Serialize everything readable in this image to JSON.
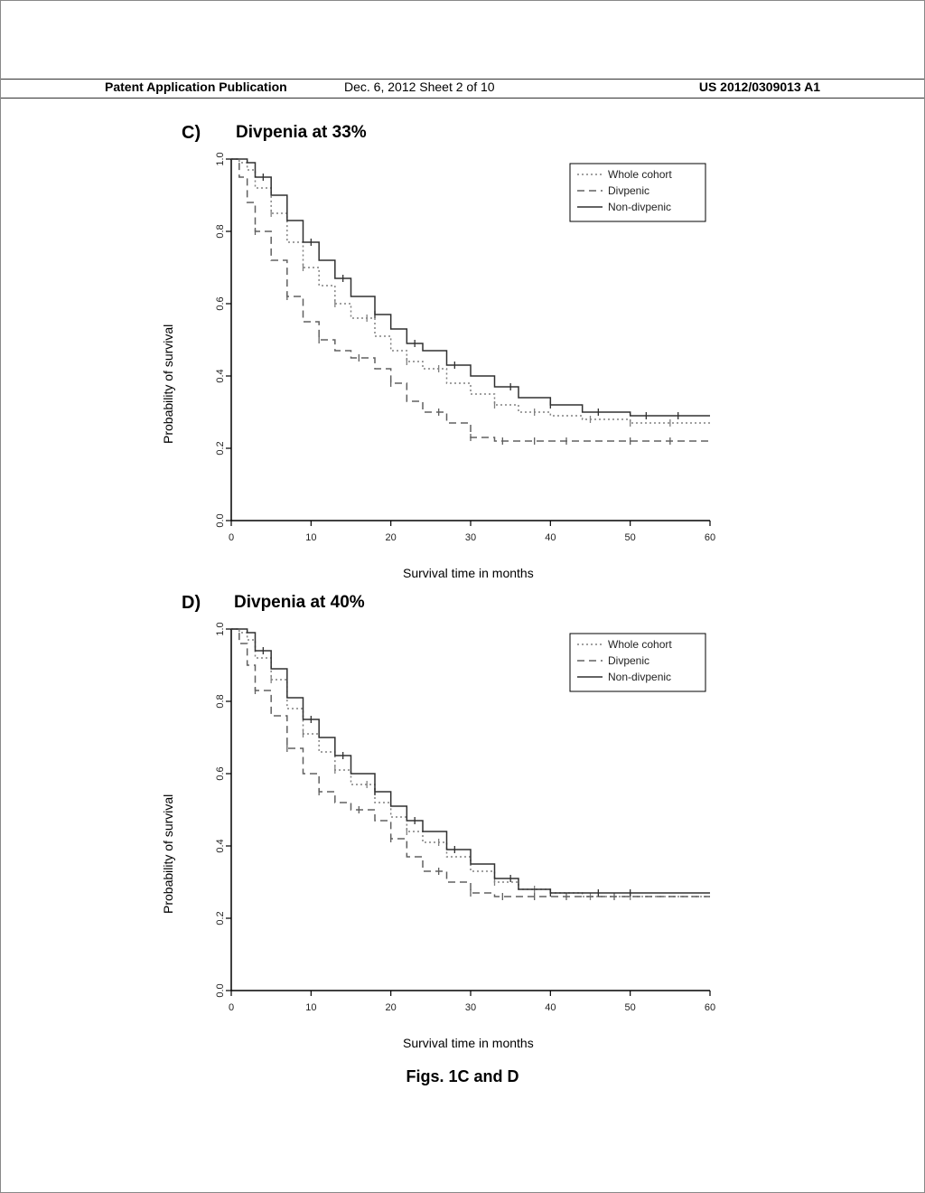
{
  "header": {
    "left": "Patent Application Publication",
    "middle": "Dec. 6, 2012  Sheet 2 of 10",
    "right": "US 2012/0309013 A1"
  },
  "caption": "Figs. 1C and D",
  "panel_c": {
    "label": "C)",
    "title": "Divpenia at 33%",
    "chart": {
      "type": "line",
      "xlabel": "Survival time in months",
      "ylabel": "Probability of survival",
      "xlim": [
        0,
        60
      ],
      "ylim": [
        0.0,
        1.0
      ],
      "xticks": [
        0,
        10,
        20,
        30,
        40,
        50,
        60
      ],
      "yticks": [
        0.0,
        0.2,
        0.4,
        0.6,
        0.8,
        1.0
      ],
      "ytick_labels": [
        "0.0",
        "0.2",
        "0.4",
        "0.6",
        "0.8",
        "1.0"
      ],
      "background_color": "#ffffff",
      "axis_color": "#000000",
      "grid_color": "#cccccc",
      "label_fontsize": 13,
      "tick_fontsize": 11,
      "line_width": 1.5,
      "censor_tick_height": 4,
      "legend": {
        "position": "top-right",
        "border_color": "#000000",
        "bg_color": "#ffffff",
        "fontsize": 12,
        "items": [
          "Whole cohort",
          "Divpenic",
          "Non-divpenic"
        ]
      },
      "series": [
        {
          "name": "Whole cohort",
          "color": "#808080",
          "dash": "dotted",
          "points": [
            [
              0,
              1.0
            ],
            [
              1,
              0.99
            ],
            [
              2,
              0.97
            ],
            [
              3,
              0.92
            ],
            [
              5,
              0.85
            ],
            [
              7,
              0.77
            ],
            [
              9,
              0.7
            ],
            [
              11,
              0.65
            ],
            [
              13,
              0.6
            ],
            [
              15,
              0.56
            ],
            [
              18,
              0.51
            ],
            [
              20,
              0.47
            ],
            [
              22,
              0.44
            ],
            [
              24,
              0.42
            ],
            [
              27,
              0.38
            ],
            [
              30,
              0.35
            ],
            [
              33,
              0.32
            ],
            [
              36,
              0.3
            ],
            [
              40,
              0.29
            ],
            [
              44,
              0.28
            ],
            [
              50,
              0.27
            ],
            [
              55,
              0.27
            ],
            [
              60,
              0.27
            ]
          ],
          "censor_x": [
            5,
            9,
            13,
            17,
            22,
            26,
            33,
            38,
            45,
            50,
            55
          ]
        },
        {
          "name": "Divpenic",
          "color": "#606060",
          "dash": "dashed",
          "points": [
            [
              0,
              1.0
            ],
            [
              1,
              0.95
            ],
            [
              2,
              0.88
            ],
            [
              3,
              0.8
            ],
            [
              5,
              0.72
            ],
            [
              7,
              0.62
            ],
            [
              9,
              0.55
            ],
            [
              11,
              0.5
            ],
            [
              13,
              0.47
            ],
            [
              15,
              0.45
            ],
            [
              18,
              0.42
            ],
            [
              20,
              0.38
            ],
            [
              22,
              0.33
            ],
            [
              24,
              0.3
            ],
            [
              27,
              0.27
            ],
            [
              30,
              0.23
            ],
            [
              33,
              0.22
            ],
            [
              36,
              0.22
            ],
            [
              40,
              0.22
            ],
            [
              44,
              0.22
            ],
            [
              50,
              0.22
            ],
            [
              55,
              0.22
            ],
            [
              60,
              0.22
            ]
          ],
          "censor_x": [
            3,
            7,
            11,
            16,
            20,
            26,
            30,
            34,
            38,
            42,
            50,
            55
          ]
        },
        {
          "name": "Non-divpenic",
          "color": "#303030",
          "dash": "solid",
          "points": [
            [
              0,
              1.0
            ],
            [
              1,
              1.0
            ],
            [
              2,
              0.99
            ],
            [
              3,
              0.95
            ],
            [
              5,
              0.9
            ],
            [
              7,
              0.83
            ],
            [
              9,
              0.77
            ],
            [
              11,
              0.72
            ],
            [
              13,
              0.67
            ],
            [
              15,
              0.62
            ],
            [
              18,
              0.57
            ],
            [
              20,
              0.53
            ],
            [
              22,
              0.49
            ],
            [
              24,
              0.47
            ],
            [
              27,
              0.43
            ],
            [
              30,
              0.4
            ],
            [
              33,
              0.37
            ],
            [
              36,
              0.34
            ],
            [
              40,
              0.32
            ],
            [
              44,
              0.3
            ],
            [
              50,
              0.29
            ],
            [
              55,
              0.29
            ],
            [
              60,
              0.29
            ]
          ],
          "censor_x": [
            4,
            10,
            14,
            18,
            23,
            28,
            35,
            40,
            46,
            52,
            56
          ]
        }
      ]
    }
  },
  "panel_d": {
    "label": "D)",
    "title": "Divpenia at 40%",
    "chart": {
      "type": "line",
      "xlabel": "Survival time in months",
      "ylabel": "Probability of survival",
      "xlim": [
        0,
        60
      ],
      "ylim": [
        0.0,
        1.0
      ],
      "xticks": [
        0,
        10,
        20,
        30,
        40,
        50,
        60
      ],
      "yticks": [
        0.0,
        0.2,
        0.4,
        0.6,
        0.8,
        1.0
      ],
      "ytick_labels": [
        "0.0",
        "0.2",
        "0.4",
        "0.6",
        "0.8",
        "1.0"
      ],
      "background_color": "#ffffff",
      "axis_color": "#000000",
      "grid_color": "#cccccc",
      "label_fontsize": 13,
      "tick_fontsize": 11,
      "line_width": 1.5,
      "censor_tick_height": 4,
      "legend": {
        "position": "top-right",
        "border_color": "#000000",
        "bg_color": "#ffffff",
        "fontsize": 12,
        "items": [
          "Whole cohort",
          "Divpenic",
          "Non-divpenic"
        ]
      },
      "series": [
        {
          "name": "Whole cohort",
          "color": "#808080",
          "dash": "dotted",
          "points": [
            [
              0,
              1.0
            ],
            [
              1,
              0.99
            ],
            [
              2,
              0.97
            ],
            [
              3,
              0.92
            ],
            [
              5,
              0.86
            ],
            [
              7,
              0.78
            ],
            [
              9,
              0.71
            ],
            [
              11,
              0.66
            ],
            [
              13,
              0.61
            ],
            [
              15,
              0.57
            ],
            [
              18,
              0.52
            ],
            [
              20,
              0.48
            ],
            [
              22,
              0.44
            ],
            [
              24,
              0.41
            ],
            [
              27,
              0.37
            ],
            [
              30,
              0.33
            ],
            [
              33,
              0.3
            ],
            [
              36,
              0.28
            ],
            [
              40,
              0.27
            ],
            [
              44,
              0.26
            ],
            [
              50,
              0.26
            ],
            [
              55,
              0.26
            ],
            [
              60,
              0.26
            ]
          ],
          "censor_x": [
            5,
            9,
            13,
            17,
            22,
            26,
            33,
            38,
            45,
            50
          ]
        },
        {
          "name": "Divpenic",
          "color": "#606060",
          "dash": "dashed",
          "points": [
            [
              0,
              1.0
            ],
            [
              1,
              0.96
            ],
            [
              2,
              0.9
            ],
            [
              3,
              0.83
            ],
            [
              5,
              0.76
            ],
            [
              7,
              0.67
            ],
            [
              9,
              0.6
            ],
            [
              11,
              0.55
            ],
            [
              13,
              0.52
            ],
            [
              15,
              0.5
            ],
            [
              18,
              0.47
            ],
            [
              20,
              0.42
            ],
            [
              22,
              0.37
            ],
            [
              24,
              0.33
            ],
            [
              27,
              0.3
            ],
            [
              30,
              0.27
            ],
            [
              33,
              0.26
            ],
            [
              36,
              0.26
            ],
            [
              40,
              0.26
            ],
            [
              44,
              0.26
            ],
            [
              50,
              0.26
            ],
            [
              55,
              0.26
            ],
            [
              60,
              0.26
            ]
          ],
          "censor_x": [
            3,
            7,
            11,
            16,
            20,
            26,
            30,
            34,
            38,
            42,
            48
          ]
        },
        {
          "name": "Non-divpenic",
          "color": "#303030",
          "dash": "solid",
          "points": [
            [
              0,
              1.0
            ],
            [
              1,
              1.0
            ],
            [
              2,
              0.99
            ],
            [
              3,
              0.94
            ],
            [
              5,
              0.89
            ],
            [
              7,
              0.81
            ],
            [
              9,
              0.75
            ],
            [
              11,
              0.7
            ],
            [
              13,
              0.65
            ],
            [
              15,
              0.6
            ],
            [
              18,
              0.55
            ],
            [
              20,
              0.51
            ],
            [
              22,
              0.47
            ],
            [
              24,
              0.44
            ],
            [
              27,
              0.39
            ],
            [
              30,
              0.35
            ],
            [
              33,
              0.31
            ],
            [
              36,
              0.28
            ],
            [
              40,
              0.27
            ],
            [
              44,
              0.27
            ],
            [
              50,
              0.27
            ],
            [
              55,
              0.27
            ],
            [
              60,
              0.27
            ]
          ],
          "censor_x": [
            4,
            10,
            14,
            18,
            23,
            28,
            35,
            40,
            46,
            50
          ]
        }
      ]
    }
  }
}
